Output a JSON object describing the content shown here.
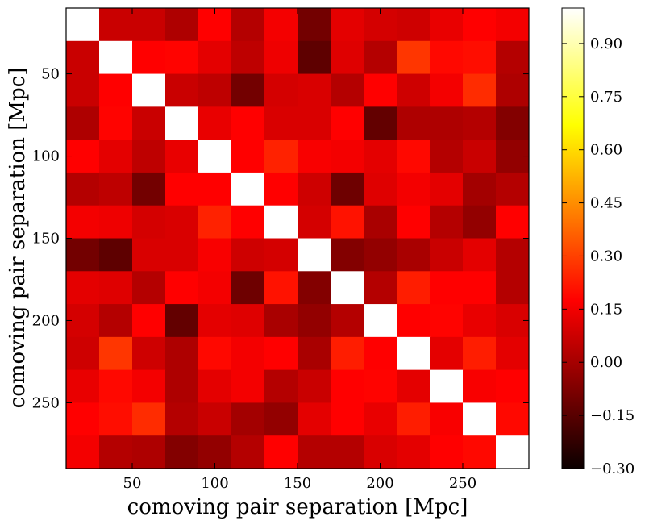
{
  "chart_data": {
    "type": "heatmap",
    "title": "",
    "xlabel": "comoving pair separation [Mpc]",
    "ylabel": "comoving pair separation [Mpc]",
    "bin_centers": [
      20,
      40,
      60,
      80,
      100,
      120,
      140,
      160,
      180,
      200,
      220,
      240,
      260,
      280
    ],
    "xlim": [
      10,
      290
    ],
    "ylim": [
      290,
      10
    ],
    "x_ticks": [
      50,
      100,
      150,
      200,
      250
    ],
    "y_ticks": [
      50,
      100,
      150,
      200,
      250
    ],
    "x_tick_labels": [
      "50",
      "100",
      "150",
      "200",
      "250"
    ],
    "y_tick_labels": [
      "50",
      "100",
      "150",
      "200",
      "250"
    ],
    "colormap": "hot",
    "color_range": [
      -0.3,
      1.0
    ],
    "colorbar": {
      "ticks": [
        0.9,
        0.75,
        0.6,
        0.45,
        0.3,
        0.15,
        0.0,
        -0.15,
        -0.3
      ],
      "tick_labels": [
        "0.90",
        "0.75",
        "0.60",
        "0.45",
        "0.30",
        "0.15",
        "0.00",
        "−0.15",
        "−0.30"
      ]
    },
    "matrix": [
      [
        1.0,
        0.02,
        0.02,
        -0.03,
        0.14,
        -0.02,
        0.1,
        -0.14,
        0.07,
        0.04,
        0.03,
        0.08,
        0.15,
        0.1
      ],
      [
        0.02,
        1.0,
        0.14,
        0.18,
        0.07,
        0.0,
        0.09,
        -0.18,
        0.06,
        -0.02,
        0.28,
        0.19,
        0.2,
        -0.02
      ],
      [
        0.02,
        0.14,
        1.0,
        0.02,
        0.0,
        -0.14,
        0.04,
        0.05,
        -0.02,
        0.14,
        0.03,
        0.1,
        0.26,
        -0.03
      ],
      [
        -0.03,
        0.18,
        0.02,
        1.0,
        0.08,
        0.14,
        0.05,
        0.05,
        0.17,
        -0.17,
        -0.03,
        -0.03,
        -0.02,
        -0.11
      ],
      [
        0.14,
        0.07,
        0.0,
        0.08,
        1.0,
        0.15,
        0.24,
        0.11,
        0.1,
        0.07,
        0.19,
        -0.02,
        0.02,
        -0.08
      ],
      [
        -0.02,
        0.0,
        -0.14,
        0.14,
        0.15,
        1.0,
        0.15,
        0.03,
        -0.15,
        0.06,
        0.1,
        0.07,
        -0.05,
        -0.02
      ],
      [
        0.1,
        0.09,
        0.04,
        0.05,
        0.24,
        0.15,
        1.0,
        0.04,
        0.21,
        -0.04,
        0.14,
        -0.02,
        -0.08,
        0.14
      ],
      [
        -0.14,
        -0.18,
        0.05,
        0.05,
        0.11,
        0.03,
        0.04,
        1.0,
        -0.11,
        -0.08,
        -0.04,
        0.02,
        0.07,
        -0.02
      ],
      [
        0.07,
        0.06,
        -0.02,
        0.17,
        0.1,
        -0.15,
        0.21,
        -0.11,
        1.0,
        -0.02,
        0.23,
        0.15,
        0.16,
        -0.02
      ],
      [
        0.04,
        -0.02,
        0.14,
        -0.17,
        0.07,
        0.06,
        -0.04,
        -0.08,
        -0.02,
        1.0,
        0.13,
        0.18,
        0.08,
        0.05
      ],
      [
        0.03,
        0.28,
        0.03,
        -0.03,
        0.19,
        0.1,
        0.14,
        -0.04,
        0.23,
        0.13,
        1.0,
        0.07,
        0.23,
        0.07
      ],
      [
        0.08,
        0.19,
        0.1,
        -0.03,
        0.07,
        0.1,
        -0.02,
        0.02,
        0.15,
        0.18,
        0.07,
        1.0,
        0.11,
        0.15
      ],
      [
        0.15,
        0.2,
        0.26,
        -0.02,
        0.02,
        -0.05,
        -0.08,
        0.07,
        0.16,
        0.08,
        0.23,
        0.11,
        1.0,
        0.19
      ],
      [
        0.1,
        -0.02,
        -0.03,
        -0.11,
        -0.08,
        -0.02,
        0.14,
        -0.02,
        -0.02,
        0.05,
        0.07,
        0.15,
        0.19,
        1.0
      ]
    ]
  }
}
